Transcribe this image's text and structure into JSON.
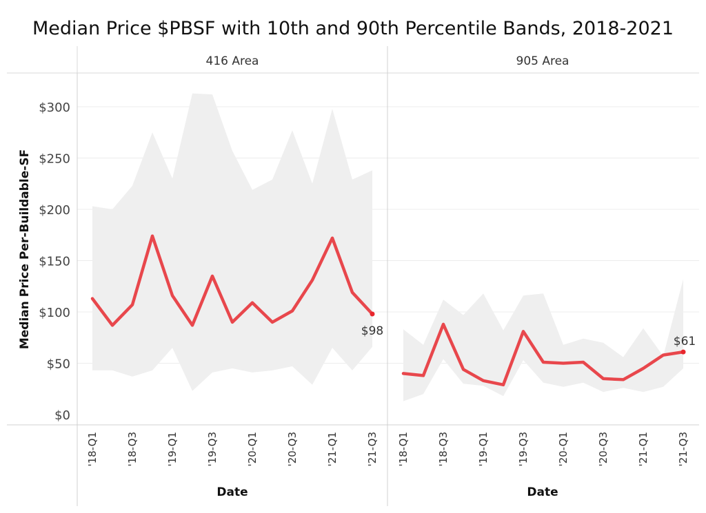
{
  "chart_data": {
    "type": "line",
    "title": "Median Price $PBSF with 10th and 90th Percentile Bands, 2018-2021",
    "ylabel": "Median Price Per-Buildable-SF",
    "xlabel": "Date",
    "ylim": [
      0,
      325
    ],
    "y_ticks": [
      0,
      50,
      100,
      150,
      200,
      250,
      300
    ],
    "y_tick_labels": [
      "$0",
      "$50",
      "$100",
      "$150",
      "$200",
      "$250",
      "$300"
    ],
    "quarters": [
      "2018-Q1",
      "2018-Q2",
      "2018-Q3",
      "2018-Q4",
      "2019-Q1",
      "2019-Q2",
      "2019-Q3",
      "2019-Q4",
      "2020-Q1",
      "2020-Q2",
      "2020-Q3",
      "2020-Q4",
      "2021-Q1",
      "2021-Q2",
      "2021-Q3"
    ],
    "x_tick_labels": [
      "'18-Q1",
      "'18-Q3",
      "'19-Q1",
      "'19-Q3",
      "'20-Q1",
      "'20-Q3",
      "'21-Q1",
      "'21-Q3"
    ],
    "grid": true,
    "line_color": "#e8474c",
    "band_color": "#efefef",
    "panels": [
      {
        "name": "416 Area",
        "median": [
          113,
          87,
          107,
          174,
          116,
          87,
          135,
          90,
          109,
          90,
          101,
          131,
          172,
          119,
          98
        ],
        "p10": [
          43,
          43,
          37,
          43,
          65,
          23,
          41,
          45,
          41,
          43,
          47,
          29,
          65,
          43,
          66
        ],
        "p90": [
          203,
          200,
          223,
          275,
          230,
          313,
          312,
          257,
          219,
          229,
          277,
          225,
          298,
          229,
          238
        ],
        "end_label": "$98"
      },
      {
        "name": "905 Area",
        "median": [
          40,
          38,
          88,
          44,
          33,
          29,
          81,
          51,
          50,
          51,
          35,
          34,
          45,
          58,
          61
        ],
        "p10": [
          13,
          20,
          54,
          30,
          28,
          18,
          53,
          31,
          27,
          31,
          22,
          26,
          22,
          27,
          45
        ],
        "p90": [
          83,
          68,
          112,
          97,
          118,
          82,
          116,
          118,
          68,
          74,
          70,
          56,
          84,
          57,
          132
        ],
        "end_label": "$61"
      }
    ]
  }
}
